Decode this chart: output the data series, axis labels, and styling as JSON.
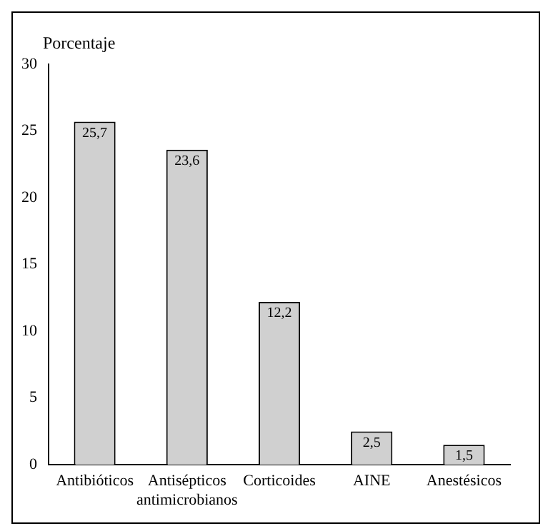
{
  "chart_data": {
    "type": "bar",
    "ylabel": "Porcentaje",
    "categories": [
      "Antibióticos",
      "Antisépticos antimicrobianos",
      "Corticoides",
      "AINE",
      "Anestésicos"
    ],
    "values": [
      25.7,
      23.6,
      12.2,
      2.5,
      1.5
    ],
    "value_labels": [
      "25,7",
      "23,6",
      "12,2",
      "2,5",
      "1,5"
    ],
    "color": "#d0d0d0",
    "ylim": [
      0,
      30
    ],
    "yticks": [
      0,
      5,
      10,
      15,
      20,
      25,
      30
    ],
    "grid": false,
    "legend": false
  }
}
